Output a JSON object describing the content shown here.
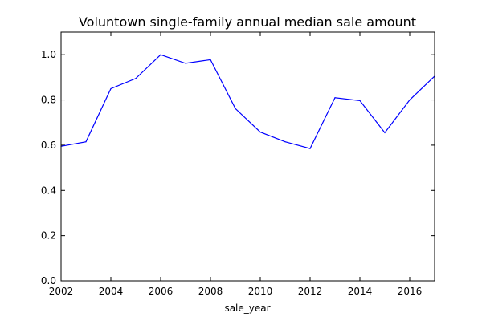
{
  "chart_data": {
    "type": "line",
    "title": "Voluntown single-family annual median sale amount",
    "xlabel": "sale_year",
    "ylabel": "",
    "xlim": [
      2002,
      2017
    ],
    "ylim": [
      0,
      1.1
    ],
    "x_ticks": [
      2002,
      2004,
      2006,
      2008,
      2010,
      2012,
      2014,
      2016
    ],
    "x_tick_labels": [
      "2002",
      "2004",
      "2006",
      "2008",
      "2010",
      "2012",
      "2014",
      "2016"
    ],
    "y_ticks": [
      0,
      0.2,
      0.4,
      0.6,
      0.8,
      1.0
    ],
    "y_tick_labels": [
      "0.0",
      "0.2",
      "0.4",
      "0.6",
      "0.8",
      "1.0"
    ],
    "grid": false,
    "series": [
      {
        "color": "#0000ff",
        "x": [
          2002,
          2003,
          2004,
          2005,
          2006,
          2007,
          2008,
          2009,
          2010,
          2011,
          2012,
          2013,
          2014,
          2015,
          2016,
          2017
        ],
        "values": [
          0.595,
          0.615,
          0.85,
          0.895,
          1.0,
          0.962,
          0.978,
          0.762,
          0.658,
          0.615,
          0.585,
          0.81,
          0.797,
          0.655,
          0.8,
          0.905
        ]
      }
    ]
  }
}
